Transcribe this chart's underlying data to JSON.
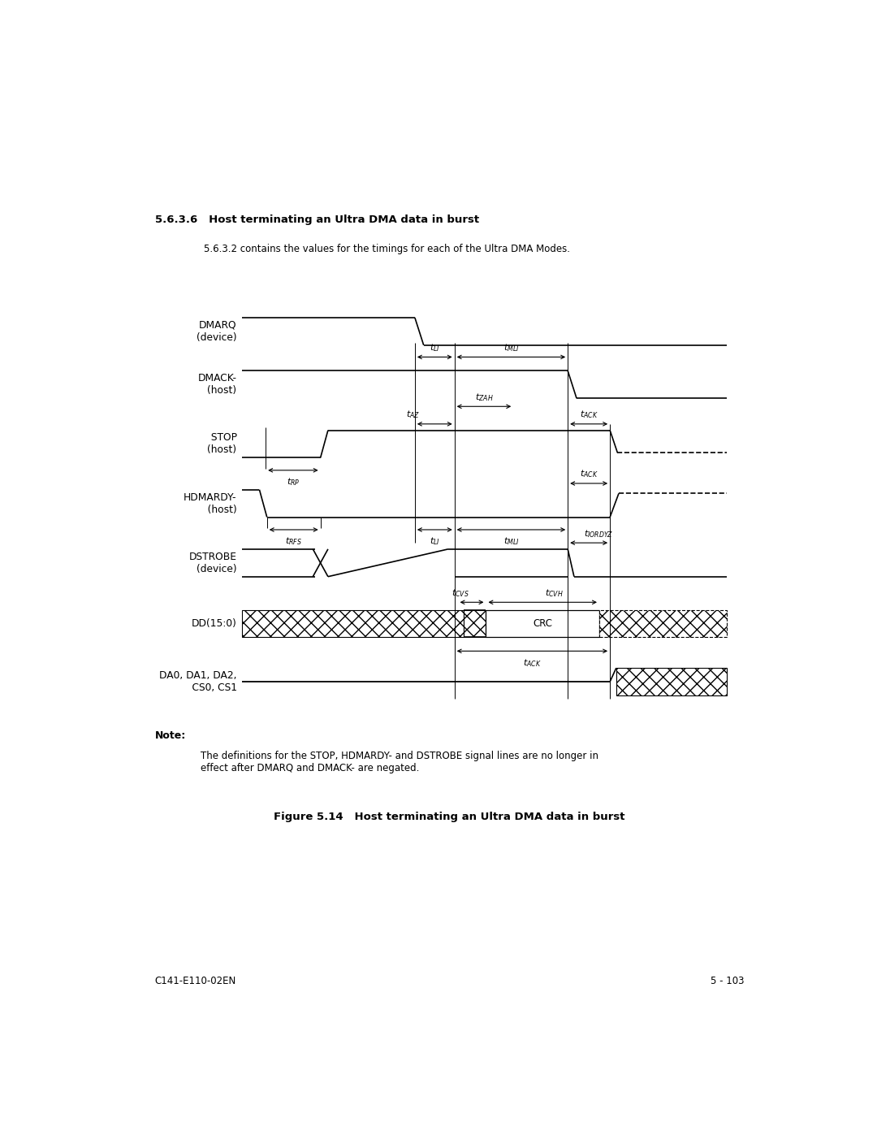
{
  "title_section": "5.6.3.6   Host terminating an Ultra DMA data in burst",
  "subtitle": "5.6.3.2 contains the values for the timings for each of the Ultra DMA Modes.",
  "figure_caption": "Figure 5.14   Host terminating an Ultra DMA data in burst",
  "note_bold": "Note:",
  "note_text": "The definitions for the STOP, HDMARDY- and DSTROBE signal lines are no longer in\neffect after DMARQ and DMACK- are negated.",
  "footer_left": "C141-E110-02EN",
  "footer_right": "5 - 103",
  "bg_color": "#ffffff"
}
